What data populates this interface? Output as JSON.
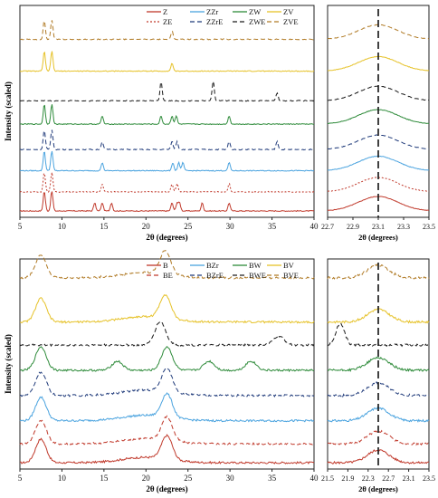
{
  "chart_data": [
    {
      "type": "line",
      "panel": "top-main",
      "xlabel": "2θ (degrees)",
      "ylabel": "Intensity (scaled)",
      "xlim": [
        5,
        40
      ],
      "xticks": [
        5,
        10,
        15,
        20,
        25,
        30,
        35,
        40
      ],
      "legend_position": "top-right",
      "series": [
        {
          "name": "Z",
          "color": "#c0392b",
          "dash": "solid",
          "peaks": [
            7.9,
            8.8,
            13.9,
            14.8,
            15.9,
            23.1,
            23.7,
            24.0,
            26.7,
            29.9
          ]
        },
        {
          "name": "ZE",
          "color": "#c0392b",
          "dash": "dotted",
          "peaks": [
            7.9,
            8.8,
            14.8,
            23.1,
            23.7,
            29.9
          ]
        },
        {
          "name": "ZZr",
          "color": "#4aa3df",
          "dash": "solid",
          "peaks": [
            7.9,
            8.8,
            14.8,
            23.2,
            23.9,
            24.4,
            29.9
          ]
        },
        {
          "name": "ZZrE",
          "color": "#1f3a7a",
          "dash": "dashed",
          "peaks": [
            7.9,
            8.8,
            14.8,
            23.1,
            23.7,
            29.9,
            35.6
          ]
        },
        {
          "name": "ZW",
          "color": "#2e8b3a",
          "dash": "solid",
          "peaks": [
            7.9,
            8.8,
            14.8,
            21.8,
            23.1,
            23.6,
            29.9
          ]
        },
        {
          "name": "ZWE",
          "color": "#1a1a1a",
          "dash": "dashed",
          "peaks": [
            21.8,
            28.0,
            35.6
          ]
        },
        {
          "name": "ZV",
          "color": "#e6c229",
          "dash": "solid",
          "peaks": [
            7.9,
            8.8,
            23.1
          ]
        },
        {
          "name": "ZVE",
          "color": "#b07a25",
          "dash": "dashed",
          "peaks": [
            7.9,
            8.8,
            23.1
          ]
        }
      ]
    },
    {
      "type": "line",
      "panel": "top-inset",
      "xlabel": "2θ (degrees)",
      "xlim": [
        22.7,
        23.5
      ],
      "xticks": [
        "22.7",
        "22.9",
        "23.1",
        "23.3",
        "23.5"
      ],
      "reference_line": 23.1
    },
    {
      "type": "line",
      "panel": "bottom-main",
      "xlabel": "2θ (degrees)",
      "ylabel": "Intensity (scaled)",
      "xlim": [
        5,
        40
      ],
      "xticks": [
        5,
        10,
        15,
        20,
        25,
        30,
        35,
        40
      ],
      "legend_position": "top-right",
      "series": [
        {
          "name": "B",
          "color": "#c0392b",
          "dash": "solid",
          "peaks": [
            7.5,
            22.5
          ]
        },
        {
          "name": "BE",
          "color": "#c0392b",
          "dash": "dashed",
          "peaks": [
            7.5,
            22.5
          ]
        },
        {
          "name": "BZr",
          "color": "#4aa3df",
          "dash": "solid",
          "peaks": [
            7.5,
            22.5
          ]
        },
        {
          "name": "BZrE",
          "color": "#1f3a7a",
          "dash": "dashed",
          "peaks": [
            7.5,
            22.5
          ]
        },
        {
          "name": "BW",
          "color": "#2e8b3a",
          "dash": "solid",
          "peaks": [
            7.5,
            16.6,
            22.5,
            27.5,
            32.5
          ]
        },
        {
          "name": "BWE",
          "color": "#1a1a1a",
          "dash": "dashed",
          "peaks": [
            21.7,
            35.8
          ]
        },
        {
          "name": "BV",
          "color": "#e6c229",
          "dash": "solid",
          "peaks": [
            7.5,
            22.3
          ]
        },
        {
          "name": "BVE",
          "color": "#b07a25",
          "dash": "dashed",
          "peaks": [
            7.5,
            22.3
          ]
        }
      ]
    },
    {
      "type": "line",
      "panel": "bottom-inset",
      "xlabel": "2θ (degrees)",
      "xlim": [
        21.5,
        23.5
      ],
      "xticks": [
        "21.5",
        "21.9",
        "22.3",
        "22.7",
        "23.1",
        "23.5"
      ],
      "reference_line": 22.5
    }
  ]
}
